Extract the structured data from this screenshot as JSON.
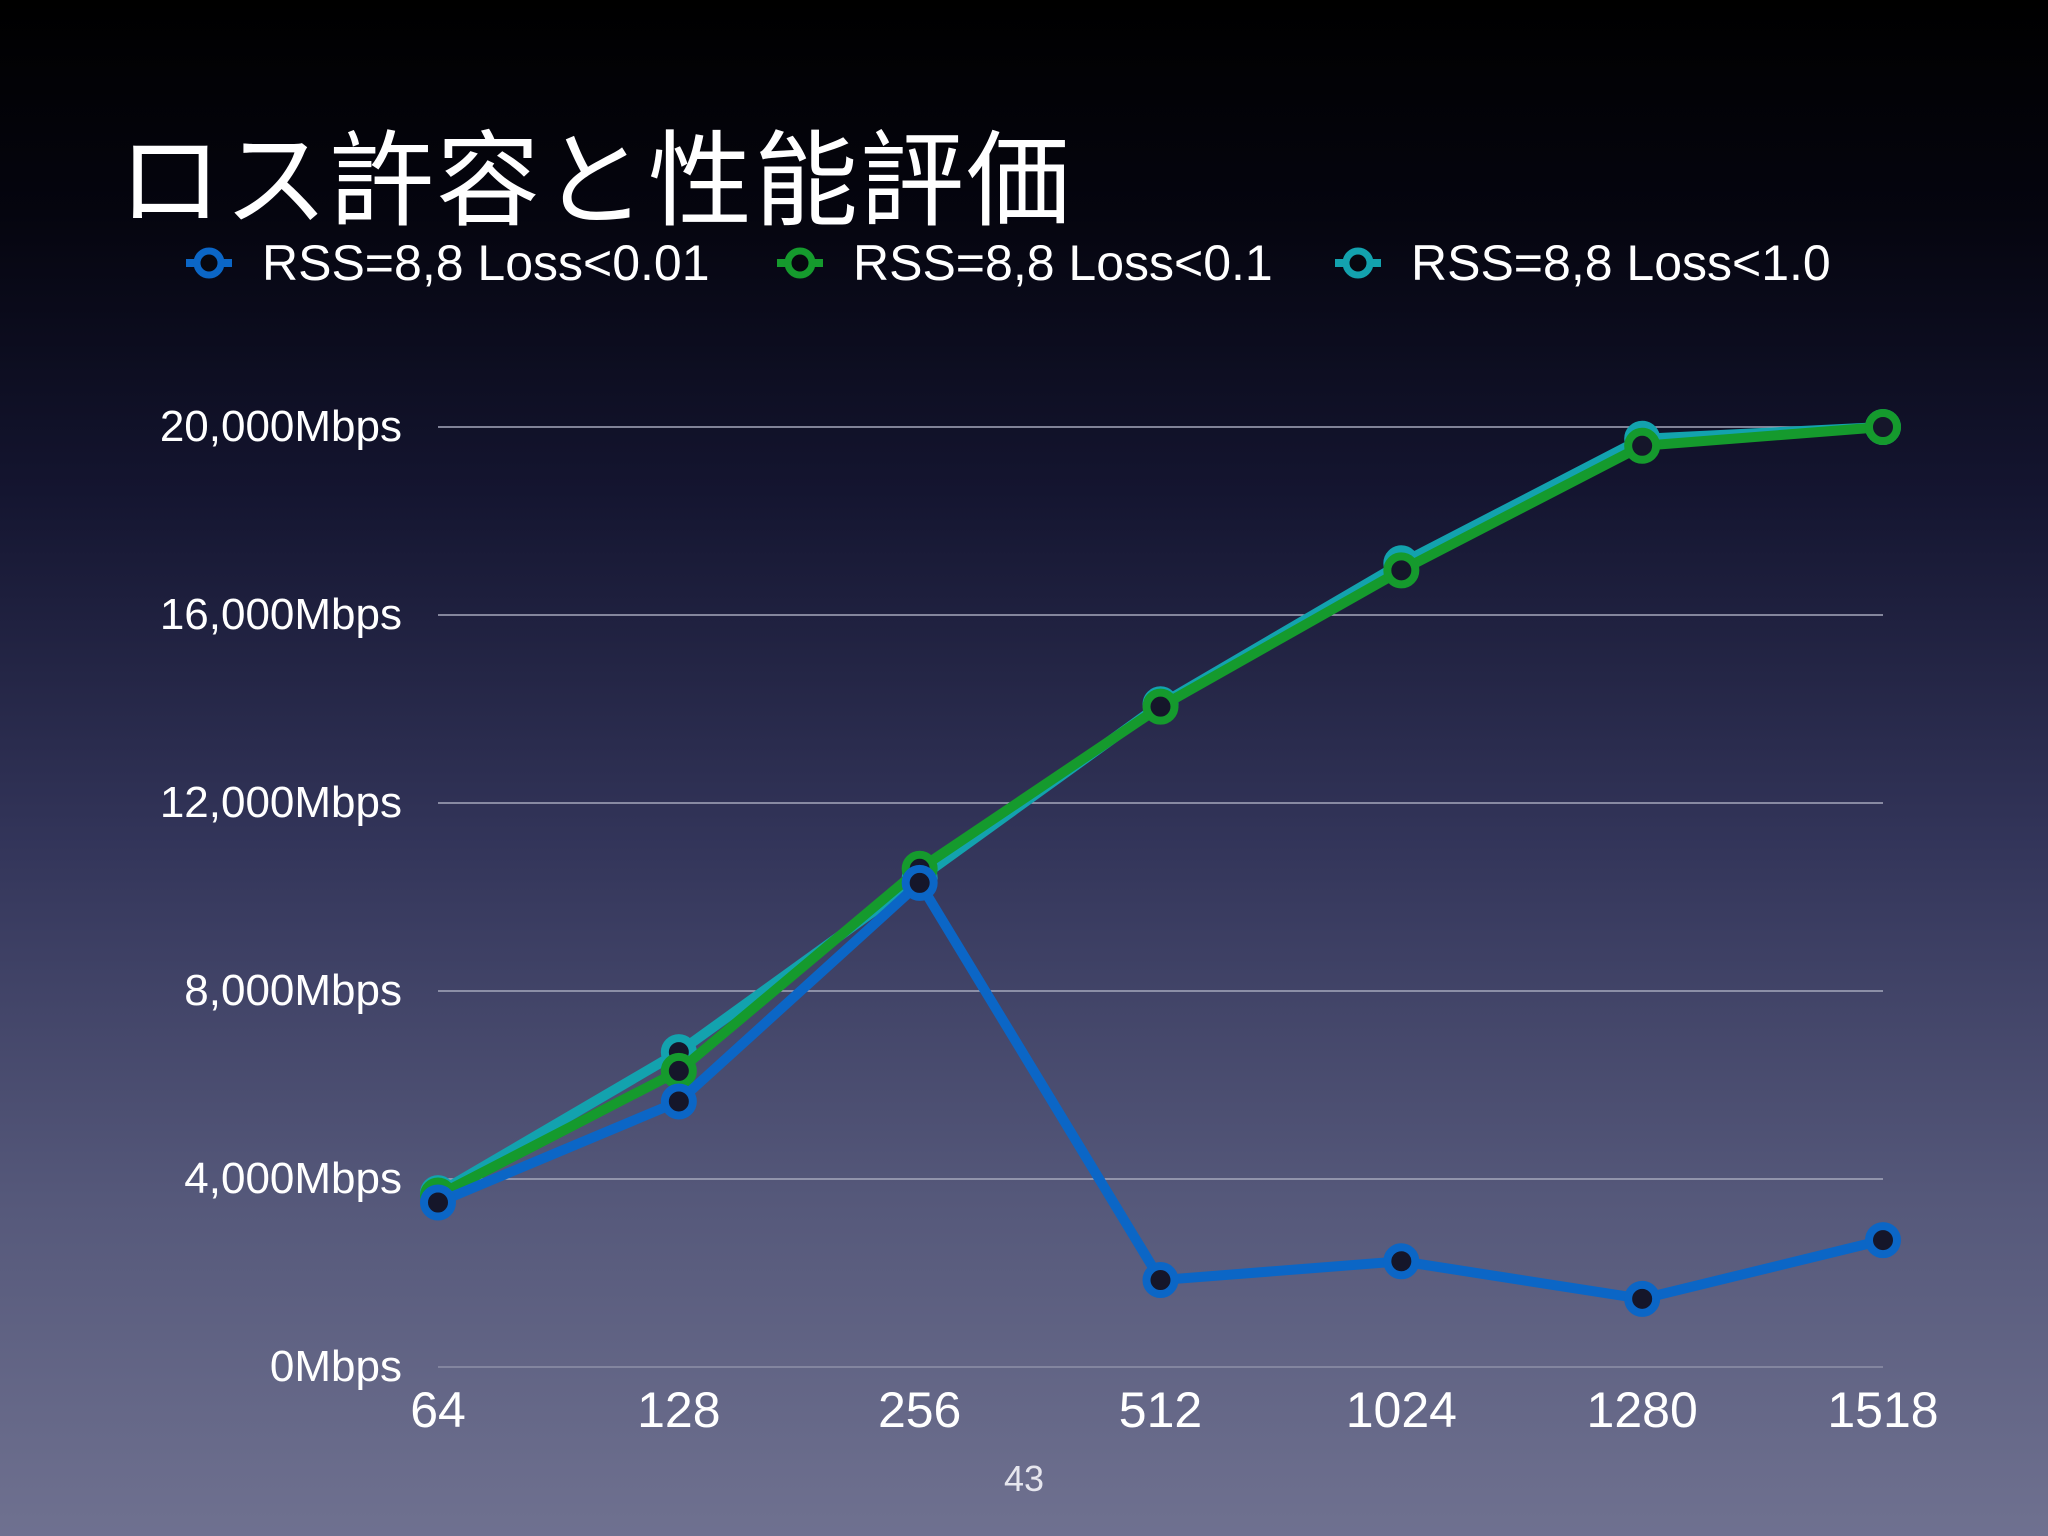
{
  "slide": {
    "title": "ロス許容と性能評価",
    "page_number": "43"
  },
  "chart_data": {
    "type": "line",
    "categories": [
      "64",
      "128",
      "256",
      "512",
      "1024",
      "1280",
      "1518"
    ],
    "y_ticks": [
      "0Mbps",
      "4,000Mbps",
      "8,000Mbps",
      "12,000Mbps",
      "16,000Mbps",
      "20,000Mbps"
    ],
    "ylim": [
      0,
      20000
    ],
    "grid": true,
    "legend_position": "top",
    "series": [
      {
        "name": "RSS=8,8 Loss<1.0",
        "color": "#13a2ae",
        "values": [
          3700,
          6700,
          10400,
          14100,
          17100,
          19750,
          20000
        ]
      },
      {
        "name": "RSS=8,8 Loss<0.1",
        "color": "#159a2d",
        "values": [
          3650,
          6300,
          10600,
          14050,
          16950,
          19600,
          20000
        ]
      },
      {
        "name": "RSS=8,8 Loss<0.01",
        "color": "#0b66c6",
        "values": [
          3500,
          5650,
          10300,
          1850,
          2250,
          1450,
          2700
        ]
      }
    ],
    "legend_order": [
      "RSS=8,8 Loss<0.01",
      "RSS=8,8 Loss<0.1",
      "RSS=8,8 Loss<1.0"
    ]
  }
}
